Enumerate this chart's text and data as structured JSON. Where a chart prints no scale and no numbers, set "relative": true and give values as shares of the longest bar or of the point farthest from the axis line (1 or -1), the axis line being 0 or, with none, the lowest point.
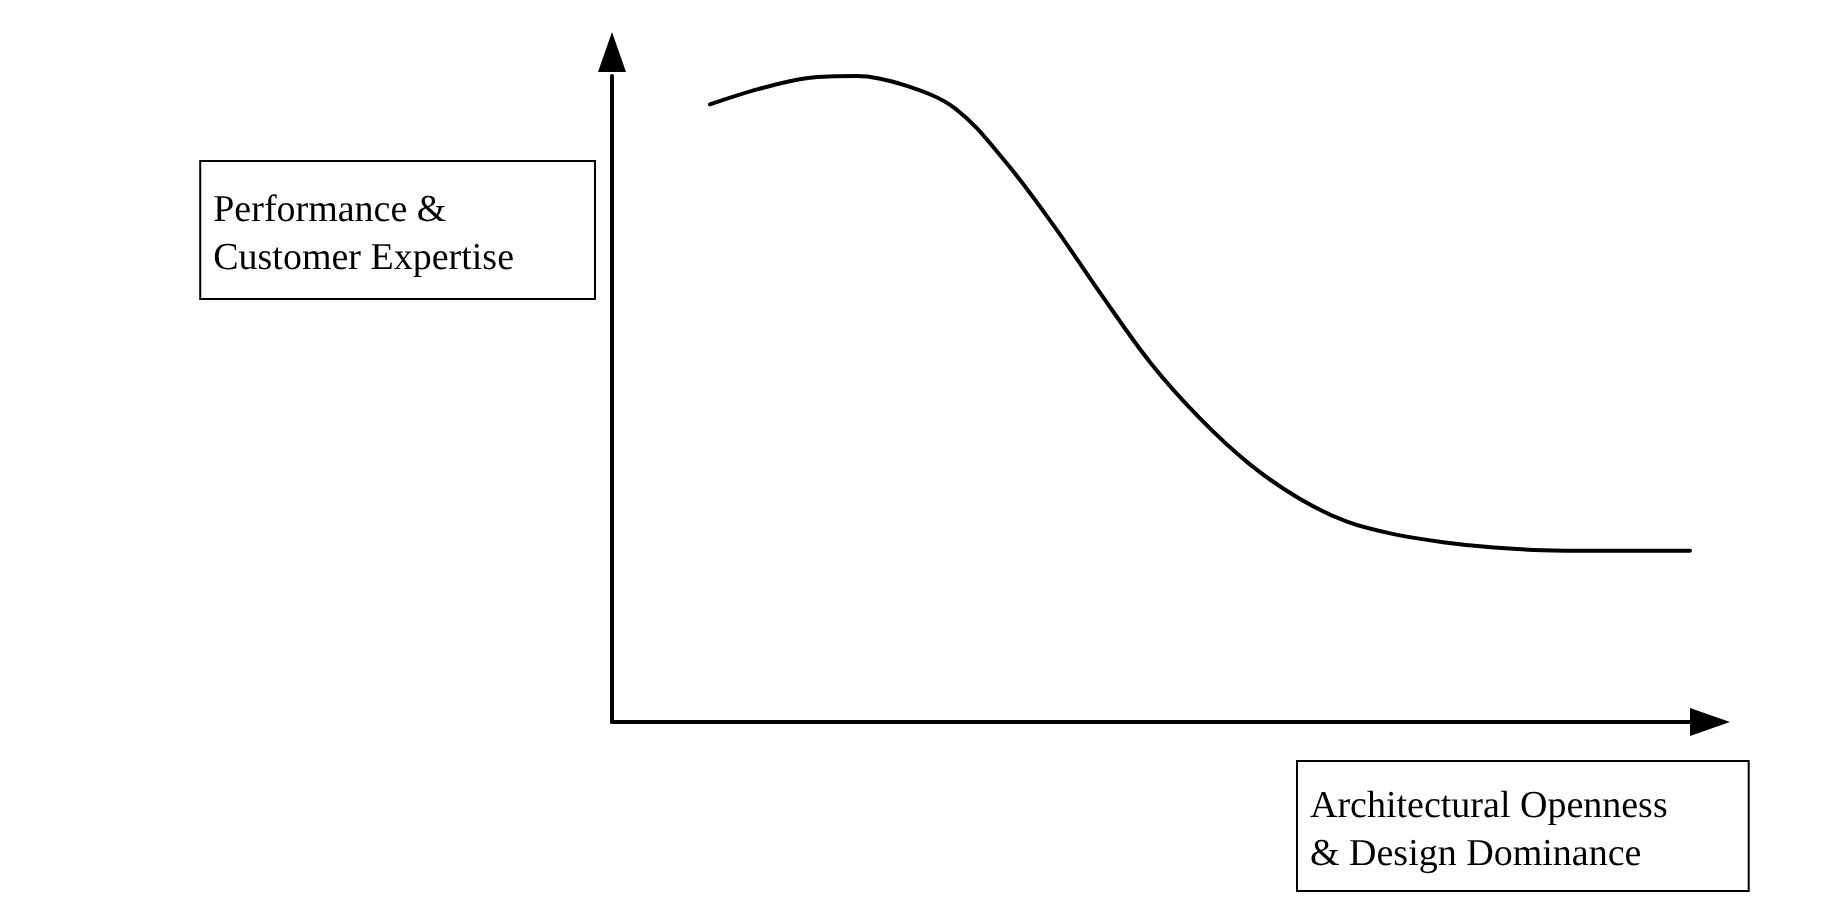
{
  "chart_data": {
    "type": "line",
    "relative": true,
    "xlabel": "Architectural Openness\n& Design Dominance",
    "ylabel": "Performance &\nCustomer Expertise",
    "marker": "none",
    "grid": false,
    "categories": [
      null,
      null,
      null,
      null,
      null,
      null,
      null,
      null,
      null,
      null,
      null,
      null,
      null,
      null,
      null,
      null,
      null,
      null,
      null,
      null,
      null,
      null,
      null
    ],
    "series": [
      {
        "color": "#000000",
        "values": [
          null,
          null,
          0.956,
          0.98,
          0.997,
          1.0,
          0.985,
          0.95,
          0.87,
          0.77,
          0.66,
          0.555,
          0.47,
          0.4,
          0.347,
          0.31,
          0.29,
          0.278,
          0.27,
          0.266,
          0.265,
          0.265,
          0.265
        ]
      }
    ]
  }
}
